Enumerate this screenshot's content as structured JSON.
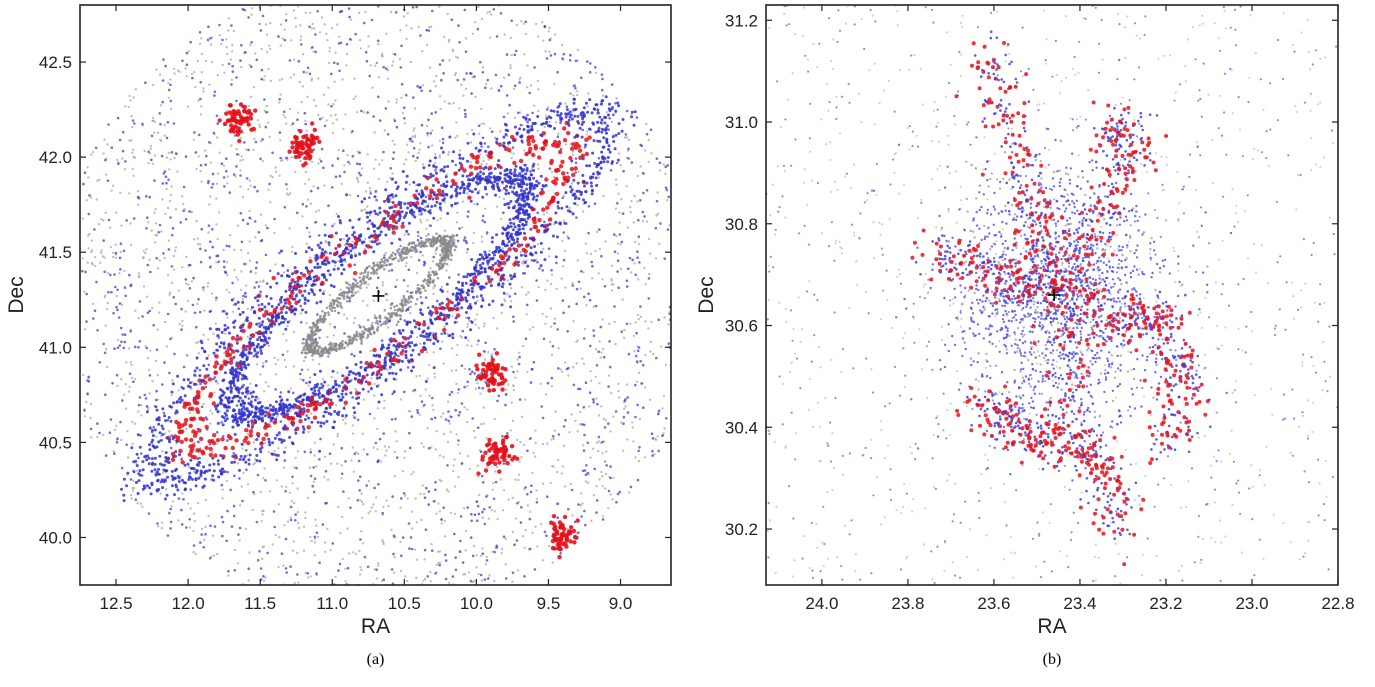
{
  "chart_data": [
    {
      "type": "scatter",
      "caption": "(a)",
      "xlabel": "RA",
      "ylabel": "Dec",
      "xlim": [
        12.75,
        8.65
      ],
      "ylim": [
        39.75,
        42.8
      ],
      "x_ticks": [
        "12.5",
        "12.0",
        "11.5",
        "11.0",
        "10.5",
        "10.0",
        "9.5",
        "9.0"
      ],
      "y_ticks": [
        "40.0",
        "40.5",
        "41.0",
        "41.5",
        "42.0",
        "42.5"
      ],
      "x_tick_values": [
        12.5,
        12.0,
        11.5,
        11.0,
        10.5,
        10.0,
        9.5,
        9.0
      ],
      "y_tick_values": [
        40.0,
        40.5,
        41.0,
        41.5,
        42.0,
        42.5
      ],
      "center_marker": [
        10.68,
        41.27
      ],
      "series_colors": {
        "gray": "#8a8a8a",
        "blue": "#3333cc",
        "red": "#e8101a"
      },
      "structure": {
        "center": [
          10.68,
          41.27
        ],
        "position_angle_deg": 38,
        "field_radius_deg": 1.55,
        "rings": [
          {
            "major": 0.45,
            "minor": 0.12,
            "color": "gray",
            "count": 900
          },
          {
            "major": 0.95,
            "minor": 0.28,
            "color": "blue",
            "count": 1400
          },
          {
            "major": 1.25,
            "minor": 0.3,
            "color": "red",
            "count": 420
          },
          {
            "major": 1.5,
            "minor": 0.36,
            "color": "blue",
            "count": 900
          }
        ],
        "background": {
          "gray": 2200,
          "blue": 1500
        }
      }
    },
    {
      "type": "scatter",
      "caption": "(b)",
      "xlabel": "RA",
      "ylabel": "Dec",
      "xlim": [
        24.13,
        22.8
      ],
      "ylim": [
        30.09,
        31.23
      ],
      "x_ticks": [
        "24.0",
        "23.8",
        "23.6",
        "23.4",
        "23.2",
        "23.0",
        "22.8"
      ],
      "y_ticks": [
        "30.2",
        "30.4",
        "30.6",
        "30.8",
        "31.0",
        "31.2"
      ],
      "x_tick_values": [
        24.0,
        23.8,
        23.6,
        23.4,
        23.2,
        23.0,
        22.8
      ],
      "y_tick_values": [
        30.2,
        30.4,
        30.6,
        30.8,
        31.0,
        31.2
      ],
      "center_marker": [
        23.46,
        30.66
      ],
      "series_colors": {
        "gray": "#9a9a9a",
        "blue": "#4040dd",
        "red": "#e8101a"
      },
      "structure": {
        "center": [
          23.46,
          30.66
        ],
        "core_radius": 0.3,
        "arms": [
          {
            "points": [
              [
                23.62,
                31.15
              ],
              [
                23.55,
                30.95
              ],
              [
                23.5,
                30.8
              ],
              [
                23.45,
                30.66
              ]
            ]
          },
          {
            "points": [
              [
                23.75,
                30.75
              ],
              [
                23.6,
                30.7
              ],
              [
                23.5,
                30.66
              ]
            ]
          },
          {
            "points": [
              [
                23.45,
                30.66
              ],
              [
                23.3,
                30.6
              ],
              [
                23.22,
                30.62
              ],
              [
                23.15,
                30.5
              ],
              [
                23.2,
                30.35
              ]
            ]
          },
          {
            "points": [
              [
                23.45,
                30.6
              ],
              [
                23.42,
                30.4
              ],
              [
                23.35,
                30.32
              ],
              [
                23.3,
                30.2
              ]
            ]
          },
          {
            "points": [
              [
                23.45,
                30.66
              ],
              [
                23.35,
                30.8
              ],
              [
                23.28,
                30.95
              ],
              [
                23.33,
                31.0
              ]
            ]
          },
          {
            "points": [
              [
                23.65,
                30.45
              ],
              [
                23.55,
                30.4
              ],
              [
                23.45,
                30.35
              ]
            ]
          }
        ],
        "background": {
          "gray": 600,
          "blue": 500
        }
      }
    }
  ]
}
